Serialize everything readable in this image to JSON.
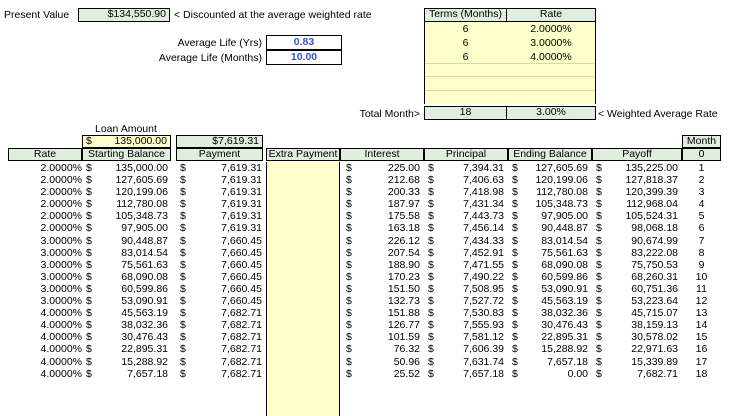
{
  "summary": {
    "present_value_label": "Present Value",
    "present_value": "$134,550.90",
    "present_value_note": "< Discounted at the average weighted rate",
    "avg_life_yrs_label": "Average Life (Yrs)",
    "avg_life_yrs": "0.83",
    "avg_life_months_label": "Average Life (Months)",
    "avg_life_months": "10.00"
  },
  "terms": {
    "header_terms": "Terms (Months)",
    "header_rate": "Rate",
    "rows": [
      {
        "term": "6",
        "rate": "2.0000%"
      },
      {
        "term": "6",
        "rate": "3.0000%"
      },
      {
        "term": "6",
        "rate": "4.0000%"
      }
    ],
    "total_label": "Total Month>",
    "total_months": "18",
    "weighted_rate": "3.00%",
    "weighted_note": "< Weighted Average Rate"
  },
  "loan": {
    "label": "Loan Amount",
    "currency": "$",
    "amount": "135,000.00",
    "payment": "$7,619.31"
  },
  "table": {
    "headers": {
      "rate": "Rate",
      "starting": "Starting Balance",
      "payment": "Payment",
      "extra": "Extra Payment",
      "interest": "Interest",
      "principal": "Principal",
      "ending": "Ending Balance",
      "payoff": "Payoff",
      "month_label": "Month",
      "month_zero": "0"
    },
    "currency": "$",
    "rows": [
      {
        "rate": "2.0000%",
        "start": "135,000.00",
        "pay": "7,619.31",
        "int": "225.00",
        "prin": "7,394.31",
        "end": "127,605.69",
        "payoff": "135,225.00",
        "m": "1"
      },
      {
        "rate": "2.0000%",
        "start": "127,605.69",
        "pay": "7,619.31",
        "int": "212.68",
        "prin": "7,406.63",
        "end": "120,199.06",
        "payoff": "127,818.37",
        "m": "2"
      },
      {
        "rate": "2.0000%",
        "start": "120,199.06",
        "pay": "7,619.31",
        "int": "200.33",
        "prin": "7,418.98",
        "end": "112,780.08",
        "payoff": "120,399.39",
        "m": "3"
      },
      {
        "rate": "2.0000%",
        "start": "112,780.08",
        "pay": "7,619.31",
        "int": "187.97",
        "prin": "7,431.34",
        "end": "105,348.73",
        "payoff": "112,968.04",
        "m": "4"
      },
      {
        "rate": "2.0000%",
        "start": "105,348.73",
        "pay": "7,619.31",
        "int": "175.58",
        "prin": "7,443.73",
        "end": "97,905.00",
        "payoff": "105,524.31",
        "m": "5"
      },
      {
        "rate": "2.0000%",
        "start": "97,905.00",
        "pay": "7,619.31",
        "int": "163.18",
        "prin": "7,456.14",
        "end": "90,448.87",
        "payoff": "98,068.18",
        "m": "6"
      },
      {
        "rate": "3.0000%",
        "start": "90,448.87",
        "pay": "7,660.45",
        "int": "226.12",
        "prin": "7,434.33",
        "end": "83,014.54",
        "payoff": "90,674.99",
        "m": "7"
      },
      {
        "rate": "3.0000%",
        "start": "83,014.54",
        "pay": "7,660.45",
        "int": "207.54",
        "prin": "7,452.91",
        "end": "75,561.63",
        "payoff": "83,222.08",
        "m": "8"
      },
      {
        "rate": "3.0000%",
        "start": "75,561.63",
        "pay": "7,660.45",
        "int": "188.90",
        "prin": "7,471.55",
        "end": "68,090.08",
        "payoff": "75,750.53",
        "m": "9"
      },
      {
        "rate": "3.0000%",
        "start": "68,090.08",
        "pay": "7,660.45",
        "int": "170.23",
        "prin": "7,490.22",
        "end": "60,599.86",
        "payoff": "68,260.31",
        "m": "10"
      },
      {
        "rate": "3.0000%",
        "start": "60,599.86",
        "pay": "7,660.45",
        "int": "151.50",
        "prin": "7,508.95",
        "end": "53,090.91",
        "payoff": "60,751.36",
        "m": "11"
      },
      {
        "rate": "3.0000%",
        "start": "53,090.91",
        "pay": "7,660.45",
        "int": "132.73",
        "prin": "7,527.72",
        "end": "45,563.19",
        "payoff": "53,223.64",
        "m": "12"
      },
      {
        "rate": "4.0000%",
        "start": "45,563.19",
        "pay": "7,682.71",
        "int": "151.88",
        "prin": "7,530.83",
        "end": "38,032.36",
        "payoff": "45,715.07",
        "m": "13"
      },
      {
        "rate": "4.0000%",
        "start": "38,032.36",
        "pay": "7,682.71",
        "int": "126.77",
        "prin": "7,555.93",
        "end": "30,476.43",
        "payoff": "38,159.13",
        "m": "14"
      },
      {
        "rate": "4.0000%",
        "start": "30,476.43",
        "pay": "7,682.71",
        "int": "101.59",
        "prin": "7,581.12",
        "end": "22,895.31",
        "payoff": "30,578.02",
        "m": "15"
      },
      {
        "rate": "4.0000%",
        "start": "22,895.31",
        "pay": "7,682.71",
        "int": "76.32",
        "prin": "7,606.39",
        "end": "15,288.92",
        "payoff": "22,971.63",
        "m": "16"
      },
      {
        "rate": "4.0000%",
        "start": "15,288.92",
        "pay": "7,682.71",
        "int": "50.96",
        "prin": "7,631.74",
        "end": "7,657.18",
        "payoff": "15,339.89",
        "m": "17"
      },
      {
        "rate": "4.0000%",
        "start": "7,657.18",
        "pay": "7,682.71",
        "int": "25.52",
        "prin": "7,657.18",
        "end": "0.00",
        "payoff": "7,682.71",
        "m": "18"
      }
    ]
  }
}
